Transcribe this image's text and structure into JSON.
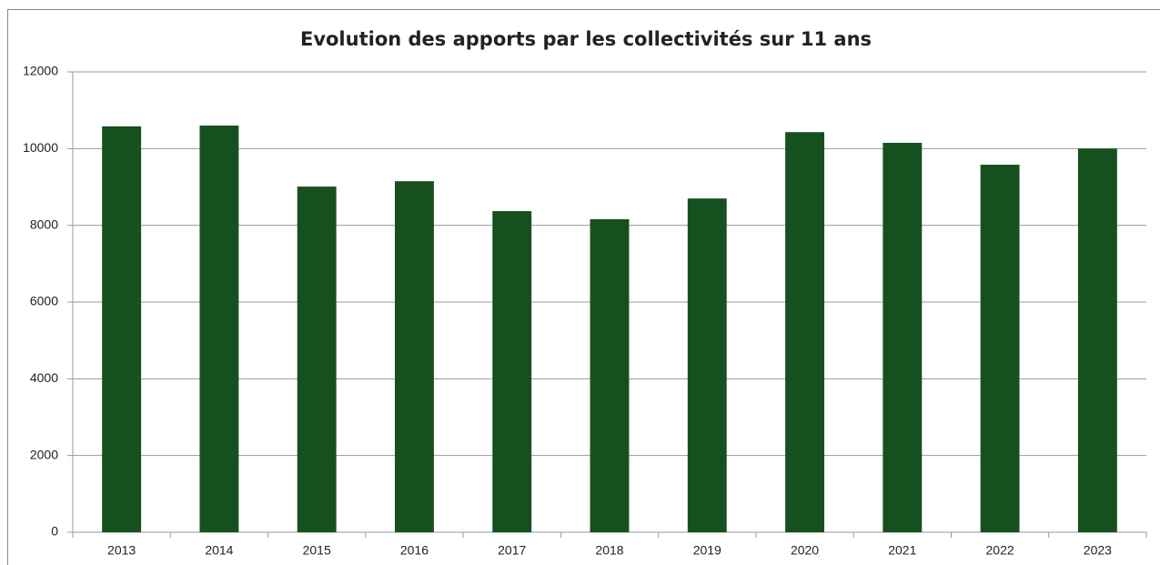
{
  "chart_data": {
    "type": "bar",
    "title": "Evolution des apports par les collectivités sur 11 ans",
    "categories": [
      "2013",
      "2014",
      "2015",
      "2016",
      "2017",
      "2018",
      "2019",
      "2020",
      "2021",
      "2022",
      "2023"
    ],
    "values": [
      10580,
      10600,
      9010,
      9150,
      8370,
      8160,
      8700,
      10430,
      10150,
      9580,
      10000
    ],
    "color": "#17501f",
    "ylim": [
      0,
      12000
    ],
    "yticks": [
      0,
      2000,
      4000,
      6000,
      8000,
      10000,
      12000
    ],
    "grid": true
  }
}
